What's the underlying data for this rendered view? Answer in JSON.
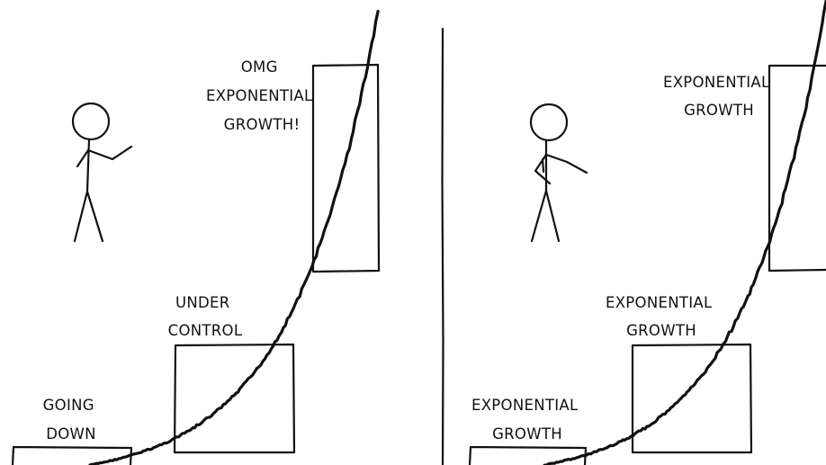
{
  "panels": [
    {
      "boxes": [
        {
          "label_lines": [
            "GOING",
            "DOWN"
          ]
        },
        {
          "label_lines": [
            "UNDER",
            "CONTROL"
          ]
        },
        {
          "label_lines": [
            "OMG",
            "EXPONENTIAL",
            "GROWTH!"
          ]
        }
      ]
    },
    {
      "boxes": [
        {
          "label_lines": [
            "EXPONENTIAL",
            "GROWTH"
          ]
        },
        {
          "label_lines": [
            "EXPONENTIAL",
            "GROWTH"
          ]
        },
        {
          "label_lines": [
            "EXPONENTIAL",
            "GROWTH"
          ]
        }
      ]
    }
  ],
  "colors": {
    "ink": "#111111",
    "background": "#ffffff"
  }
}
